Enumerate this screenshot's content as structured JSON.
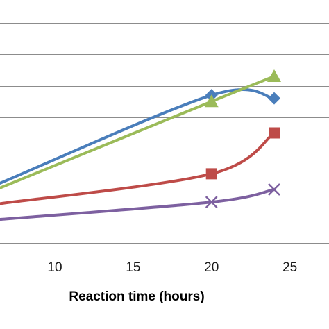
{
  "chart_data": {
    "type": "line",
    "smooth": true,
    "title": "",
    "xlabel": "Reaction time (hours)",
    "ylabel": "",
    "xticks": [
      10,
      15,
      20,
      25
    ],
    "xlim": [
      6.5,
      27.5
    ],
    "ylim": [
      0,
      7
    ],
    "grid_lines": [
      0,
      1,
      2,
      3,
      4,
      5,
      6,
      7
    ],
    "grid": "horizontal",
    "legend": "none",
    "series": [
      {
        "color": "#4a7ebb",
        "marker": "diamond",
        "x": [
          6.5,
          20,
          24
        ],
        "y": [
          1.9,
          4.7,
          4.6
        ],
        "markers_at": [
          20,
          24
        ]
      },
      {
        "color": "#9bbb59",
        "marker": "triangle",
        "x": [
          6.5,
          20,
          24
        ],
        "y": [
          1.75,
          4.5,
          5.3
        ],
        "markers_at": [
          20,
          24
        ]
      },
      {
        "color": "#be4b48",
        "marker": "square",
        "x": [
          6.5,
          20,
          24
        ],
        "y": [
          1.25,
          2.2,
          3.5
        ],
        "markers_at": [
          20,
          24
        ]
      },
      {
        "color": "#7d60a0",
        "marker": "x",
        "x": [
          6.5,
          20,
          24
        ],
        "y": [
          0.75,
          1.3,
          1.7
        ],
        "markers_at": [
          20,
          24
        ]
      }
    ]
  }
}
